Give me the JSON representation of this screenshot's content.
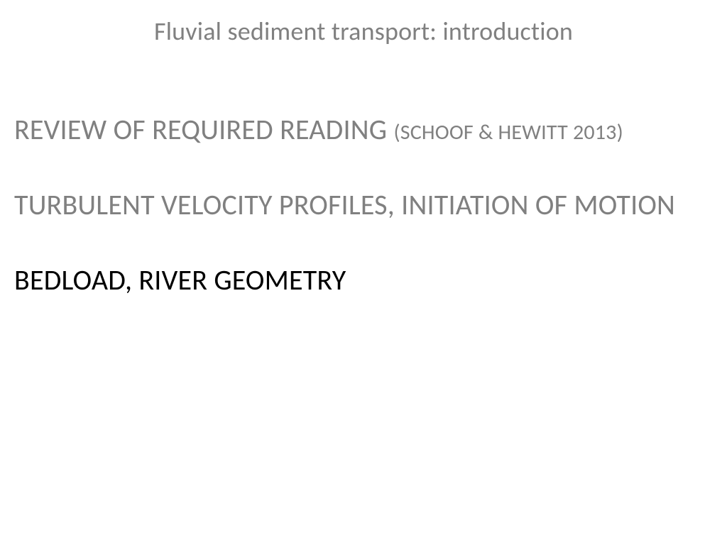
{
  "colors": {
    "background": "#ffffff",
    "muted_text": "#808080",
    "primary_text": "#000000"
  },
  "title": "Fluvial sediment transport: introduction",
  "sections": {
    "review_main": "REVIEW OF REQUIRED READING ",
    "review_sub": "(SCHOOF & HEWITT 2013)",
    "turbulent": "TURBULENT VELOCITY PROFILES, INITIATION OF MOTION",
    "bedload": "BEDLOAD, RIVER GEOMETRY"
  },
  "styling": {
    "title_color": "#808080",
    "review_color": "#808080",
    "turbulent_color": "#808080",
    "bedload_color": "#000000",
    "title_fontsize": 36,
    "body_fontsize": 40,
    "sub_fontsize": 30
  }
}
